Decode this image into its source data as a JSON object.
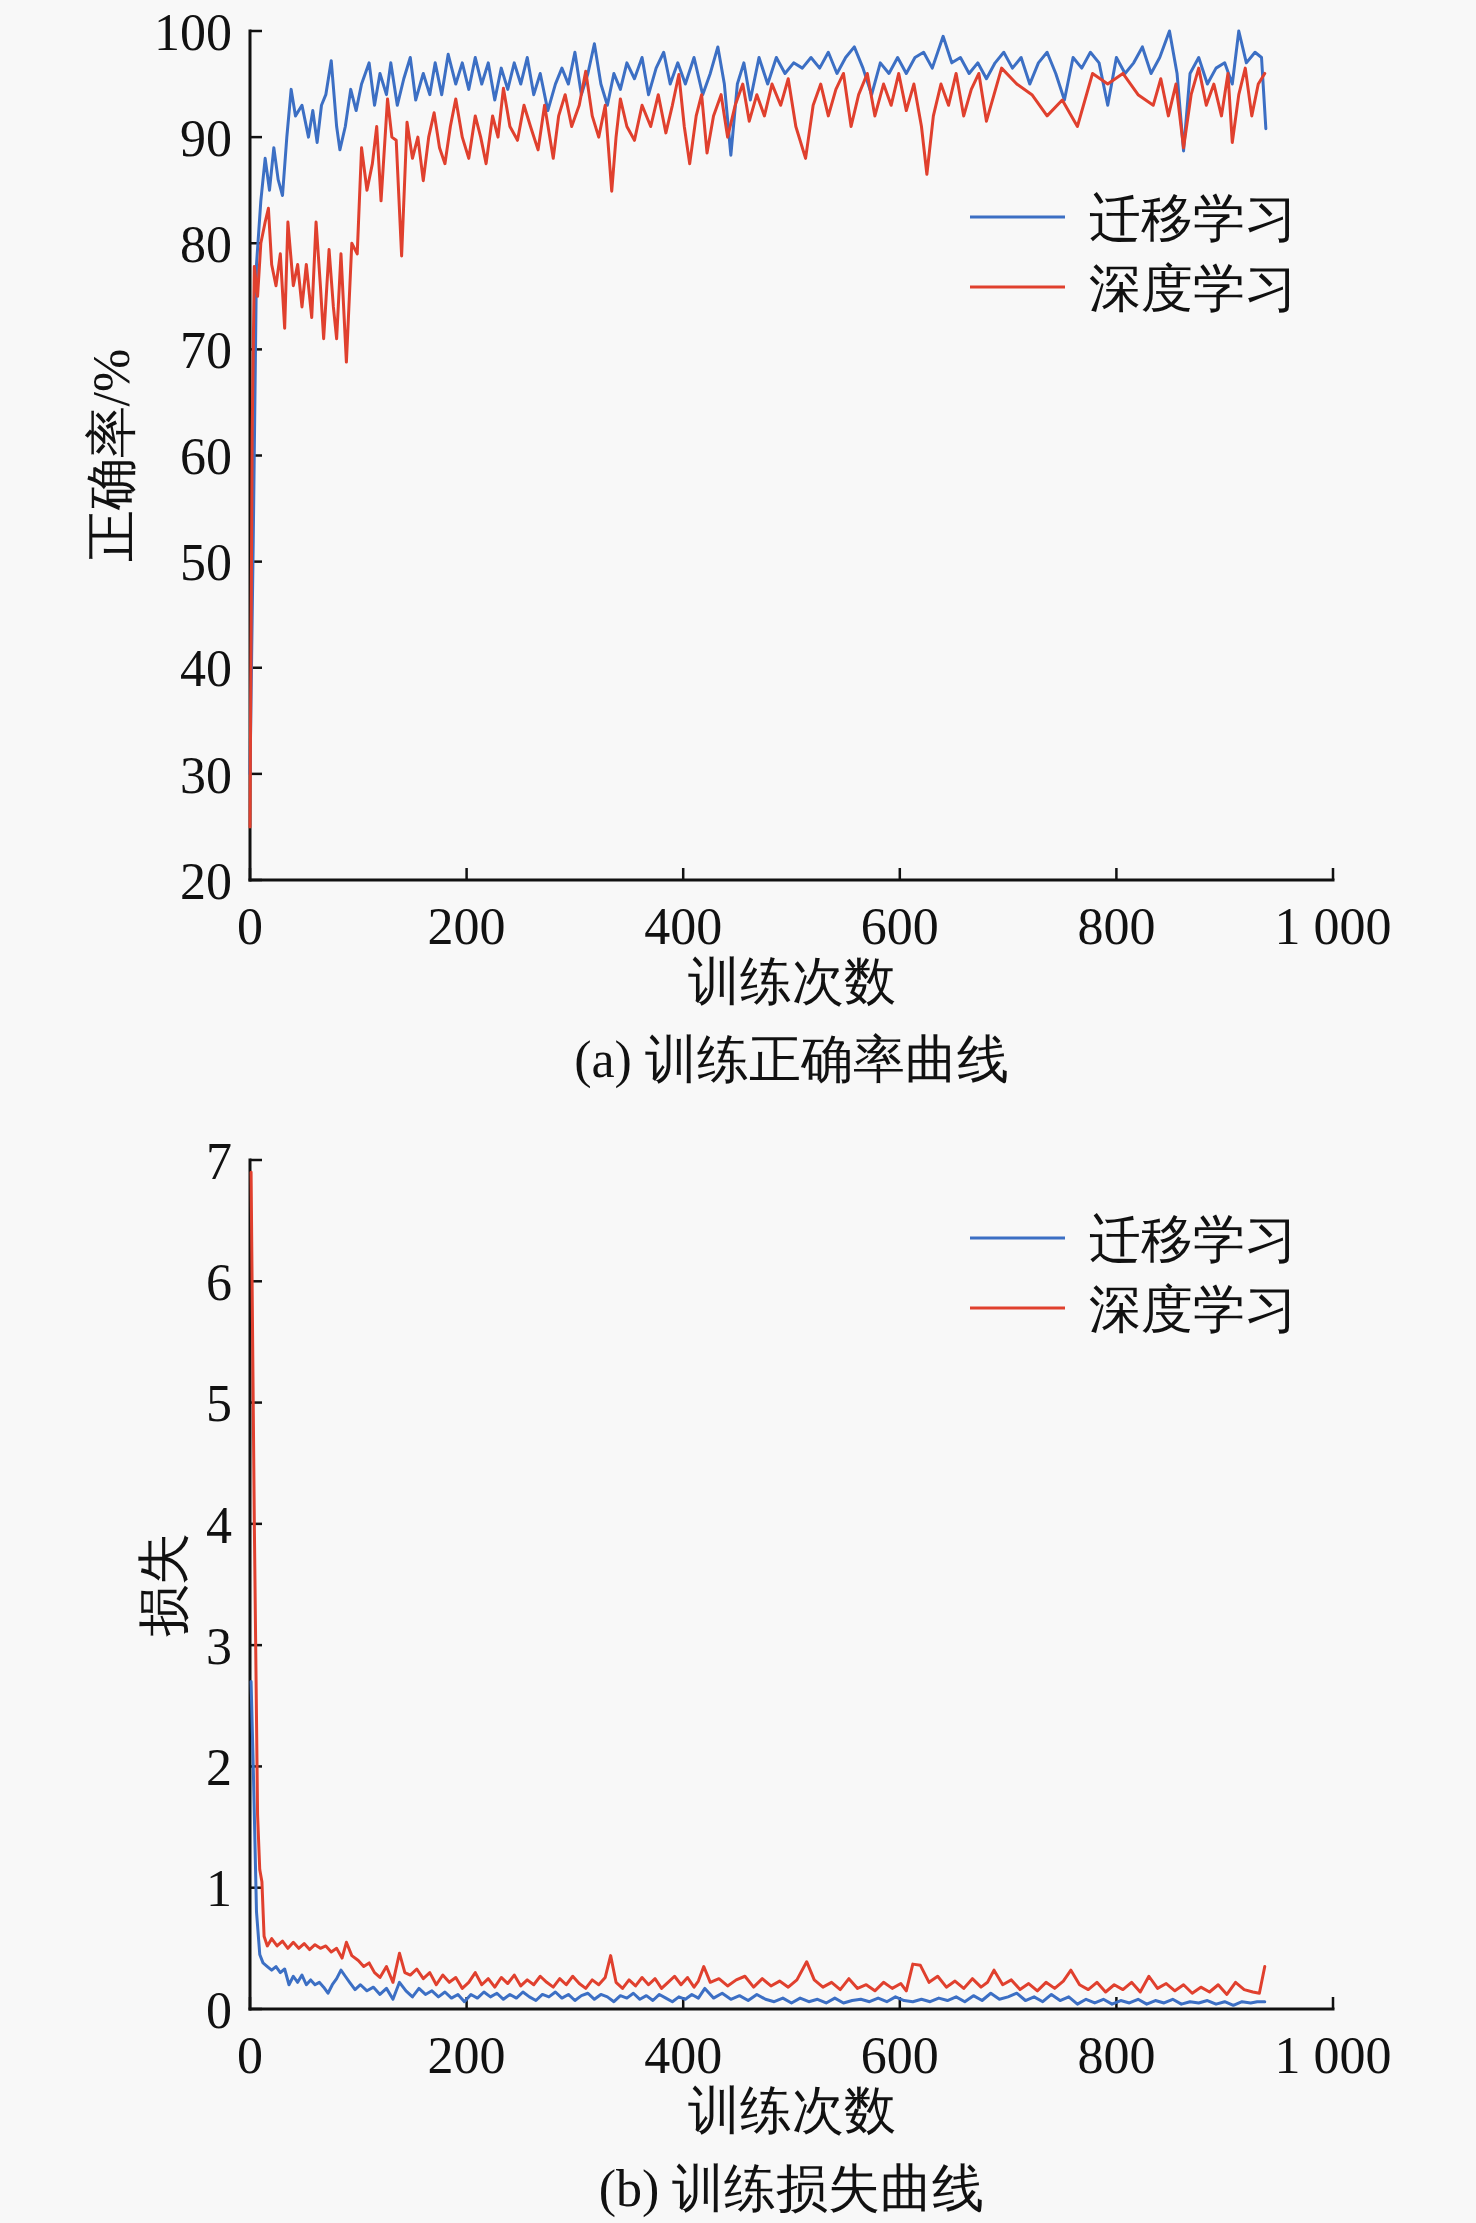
{
  "chart_data": [
    {
      "type": "line",
      "title": "(a) 训练正确率曲线",
      "xlabel": "训练次数",
      "ylabel": "正确率/%",
      "xlim": [
        0,
        1000
      ],
      "xticks": [
        0,
        200,
        400,
        600,
        800,
        {
          "value": 1000,
          "label": "1 000"
        }
      ],
      "ylim": [
        20,
        100
      ],
      "yticks": [
        20,
        30,
        40,
        50,
        60,
        70,
        80,
        90,
        100
      ],
      "legend": "top right",
      "line_style": "solid",
      "series": [
        {
          "name": "迁移学习",
          "color": "#3c6fc4",
          "x": [
            0,
            3,
            6,
            10,
            14,
            18,
            22,
            26,
            30,
            34,
            38,
            42,
            48,
            54,
            58,
            62,
            66,
            70,
            75,
            80,
            83,
            88,
            93,
            98,
            103,
            110,
            115,
            120,
            126,
            130,
            136,
            142,
            148,
            153,
            160,
            166,
            171,
            177,
            183,
            190,
            196,
            202,
            208,
            214,
            220,
            226,
            232,
            238,
            244,
            250,
            256,
            262,
            268,
            275,
            282,
            288,
            294,
            300,
            306,
            312,
            318,
            324,
            330,
            336,
            342,
            348,
            355,
            362,
            368,
            375,
            382,
            388,
            395,
            402,
            410,
            418,
            425,
            432,
            438,
            444,
            450,
            456,
            462,
            470,
            478,
            486,
            494,
            502,
            510,
            518,
            526,
            534,
            542,
            550,
            558,
            566,
            574,
            582,
            590,
            598,
            606,
            614,
            622,
            630,
            640,
            648,
            656,
            664,
            672,
            680,
            688,
            696,
            704,
            712,
            720,
            728,
            736,
            744,
            752,
            760,
            768,
            776,
            784,
            792,
            800,
            808,
            816,
            824,
            832,
            840,
            849,
            856,
            862,
            868,
            876,
            884,
            892,
            900,
            907,
            913,
            920,
            928,
            934,
            938
          ],
          "values": [
            30,
            52,
            78,
            84,
            88,
            85,
            89,
            86,
            84.5,
            90,
            94.5,
            92,
            93,
            90,
            92.5,
            89.5,
            93,
            94,
            97.2,
            91,
            88.8,
            91,
            94.5,
            92.5,
            95,
            97,
            93,
            96,
            94,
            97,
            93,
            95.5,
            97.5,
            93.5,
            96,
            94,
            97,
            94,
            97.8,
            95,
            97,
            94.5,
            97.5,
            95,
            97,
            93.5,
            96.5,
            94.5,
            97,
            95,
            97.5,
            94,
            96,
            92.5,
            95,
            96.5,
            95,
            98,
            94,
            96,
            98.8,
            95,
            93,
            96,
            94.5,
            97,
            95.5,
            97.5,
            94,
            96.5,
            98,
            95,
            97,
            95,
            97.5,
            94,
            96,
            98.5,
            95,
            88.3,
            95,
            97,
            93.5,
            97.5,
            95,
            97.5,
            96,
            97,
            96.5,
            97.5,
            96.5,
            98,
            96,
            97.5,
            98.5,
            96.5,
            94,
            97,
            96,
            97.5,
            96,
            97.5,
            98,
            96.5,
            99.5,
            97,
            97.5,
            96,
            97,
            95.5,
            97,
            98,
            96.5,
            97.5,
            95,
            97,
            98,
            96,
            93.5,
            97.5,
            96.5,
            98,
            97,
            93,
            97.5,
            96,
            97,
            98.5,
            96,
            97.5,
            100,
            96,
            88.7,
            96,
            97.5,
            95,
            96.5,
            97,
            95,
            100,
            97,
            98,
            97.5,
            90.8
          ]
        },
        {
          "name": "深度学习",
          "color": "#e0402e",
          "x": [
            0,
            2,
            4,
            7,
            10,
            14,
            17,
            20,
            24,
            28,
            32,
            35,
            40,
            44,
            48,
            52,
            57,
            61,
            65,
            68,
            73,
            77,
            80,
            84,
            89,
            94,
            99,
            103,
            108,
            113,
            117,
            121,
            127,
            131,
            135,
            140,
            145,
            150,
            155,
            160,
            165,
            170,
            175,
            180,
            185,
            190,
            196,
            202,
            208,
            213,
            218,
            224,
            229,
            234,
            240,
            247,
            253,
            259,
            266,
            272,
            280,
            285,
            291,
            297,
            304,
            310,
            316,
            322,
            328,
            334,
            338,
            342,
            348,
            355,
            362,
            370,
            377,
            384,
            390,
            396,
            401,
            406,
            412,
            417,
            422,
            428,
            435,
            441,
            448,
            455,
            461,
            468,
            475,
            482,
            490,
            497,
            504,
            513,
            520,
            527,
            534,
            541,
            548,
            555,
            562,
            570,
            577,
            585,
            592,
            599,
            606,
            613,
            620,
            625,
            631,
            638,
            645,
            652,
            659,
            666,
            673,
            680,
            687,
            694,
            708,
            722,
            736,
            750,
            764,
            778,
            792,
            806,
            820,
            834,
            841,
            848,
            855,
            862,
            869,
            876,
            883,
            890,
            897,
            903,
            907,
            913,
            919,
            925,
            931,
            937
          ],
          "values": [
            25,
            62,
            77.8,
            75,
            80,
            82,
            83.3,
            78,
            76,
            79,
            72,
            82,
            76,
            78,
            74,
            78,
            73,
            82,
            76,
            71,
            79.4,
            74,
            71,
            79,
            68.8,
            80,
            79,
            89,
            85,
            87.5,
            91,
            84,
            93.6,
            90,
            89.7,
            78.8,
            91.4,
            88,
            90,
            85.9,
            90,
            92.3,
            89,
            87.5,
            91,
            93.6,
            90,
            88,
            92,
            90,
            87.5,
            92,
            90,
            94.6,
            91,
            89.7,
            93,
            91,
            88.8,
            93,
            88,
            92,
            94,
            91,
            93,
            96.2,
            92,
            90,
            93,
            84.9,
            90,
            93.6,
            91,
            89.7,
            93,
            91,
            94,
            90.4,
            93,
            95.9,
            91,
            87.5,
            92,
            94,
            88.5,
            92,
            94,
            90,
            93,
            95,
            91.5,
            94,
            92,
            95,
            93,
            95.5,
            91,
            88,
            93,
            95,
            92,
            94.5,
            96,
            91,
            94,
            96,
            92,
            95,
            93,
            96,
            92.5,
            95,
            91,
            86.5,
            92,
            95,
            93,
            96,
            92,
            94.5,
            96,
            91.5,
            94,
            96.5,
            95,
            94,
            92,
            93.5,
            91,
            96,
            95,
            96,
            94,
            93,
            95.5,
            92,
            95,
            89,
            94,
            96.5,
            93,
            95,
            92,
            96,
            89.5,
            94,
            96.5,
            92,
            95,
            96
          ]
        }
      ]
    },
    {
      "type": "line",
      "title": "(b) 训练损失曲线",
      "xlabel": "训练次数",
      "ylabel": "损失",
      "xlim": [
        0,
        1000
      ],
      "xticks": [
        0,
        200,
        400,
        600,
        800,
        {
          "value": 1000,
          "label": "1 000"
        }
      ],
      "ylim": [
        0,
        7
      ],
      "yticks": [
        0,
        1,
        2,
        3,
        4,
        5,
        6,
        7
      ],
      "legend": "top right",
      "line_style": "solid",
      "series": [
        {
          "name": "迁移学习",
          "color": "#3c6fc4",
          "x": [
            1,
            3,
            6,
            9,
            12,
            16,
            20,
            24,
            28,
            32,
            36,
            40,
            44,
            48,
            52,
            56,
            60,
            64,
            68,
            72,
            76,
            80,
            84,
            88,
            92,
            97,
            102,
            108,
            114,
            120,
            126,
            132,
            138,
            144,
            150,
            156,
            162,
            168,
            174,
            180,
            186,
            192,
            198,
            204,
            210,
            216,
            222,
            228,
            234,
            240,
            246,
            252,
            258,
            264,
            270,
            276,
            282,
            288,
            294,
            300,
            306,
            312,
            318,
            324,
            330,
            336,
            342,
            348,
            354,
            360,
            366,
            372,
            378,
            384,
            390,
            396,
            402,
            408,
            414,
            420,
            428,
            436,
            444,
            452,
            460,
            468,
            476,
            484,
            492,
            500,
            508,
            516,
            524,
            532,
            540,
            548,
            556,
            564,
            572,
            580,
            588,
            596,
            604,
            612,
            620,
            628,
            636,
            644,
            652,
            660,
            668,
            676,
            684,
            692,
            700,
            708,
            716,
            724,
            732,
            740,
            748,
            756,
            764,
            772,
            780,
            788,
            796,
            804,
            812,
            820,
            828,
            836,
            844,
            852,
            860,
            868,
            876,
            884,
            892,
            900,
            908,
            916,
            924,
            930,
            937
          ],
          "values": [
            2.7,
            2.0,
            0.8,
            0.45,
            0.38,
            0.35,
            0.32,
            0.35,
            0.3,
            0.33,
            0.2,
            0.27,
            0.22,
            0.28,
            0.2,
            0.24,
            0.2,
            0.22,
            0.18,
            0.13,
            0.2,
            0.25,
            0.32,
            0.27,
            0.22,
            0.16,
            0.2,
            0.15,
            0.18,
            0.12,
            0.17,
            0.08,
            0.22,
            0.15,
            0.1,
            0.17,
            0.12,
            0.15,
            0.1,
            0.14,
            0.09,
            0.12,
            0.06,
            0.12,
            0.09,
            0.14,
            0.1,
            0.13,
            0.08,
            0.12,
            0.09,
            0.14,
            0.1,
            0.07,
            0.12,
            0.1,
            0.14,
            0.09,
            0.12,
            0.07,
            0.11,
            0.13,
            0.08,
            0.12,
            0.1,
            0.06,
            0.11,
            0.09,
            0.13,
            0.08,
            0.11,
            0.07,
            0.12,
            0.09,
            0.06,
            0.1,
            0.08,
            0.12,
            0.09,
            0.17,
            0.09,
            0.13,
            0.08,
            0.11,
            0.07,
            0.12,
            0.08,
            0.06,
            0.09,
            0.05,
            0.09,
            0.06,
            0.08,
            0.05,
            0.09,
            0.05,
            0.07,
            0.08,
            0.06,
            0.09,
            0.06,
            0.1,
            0.07,
            0.06,
            0.08,
            0.06,
            0.09,
            0.07,
            0.1,
            0.06,
            0.11,
            0.07,
            0.13,
            0.08,
            0.1,
            0.13,
            0.07,
            0.1,
            0.06,
            0.12,
            0.07,
            0.1,
            0.04,
            0.08,
            0.05,
            0.08,
            0.04,
            0.07,
            0.05,
            0.08,
            0.04,
            0.07,
            0.05,
            0.08,
            0.04,
            0.06,
            0.05,
            0.07,
            0.04,
            0.06,
            0.03,
            0.06,
            0.05,
            0.06,
            0.06
          ]
        },
        {
          "name": "深度学习",
          "color": "#e0402e",
          "x": [
            1,
            4,
            7,
            9,
            11,
            13,
            16,
            20,
            25,
            30,
            35,
            40,
            45,
            50,
            55,
            60,
            65,
            70,
            75,
            80,
            85,
            89,
            94,
            100,
            105,
            110,
            115,
            120,
            126,
            132,
            138,
            143,
            148,
            154,
            160,
            166,
            172,
            178,
            184,
            190,
            196,
            202,
            208,
            214,
            220,
            226,
            232,
            238,
            244,
            250,
            256,
            262,
            268,
            274,
            280,
            286,
            292,
            298,
            304,
            310,
            316,
            322,
            328,
            333,
            338,
            344,
            350,
            356,
            362,
            368,
            374,
            380,
            386,
            392,
            398,
            404,
            410,
            414,
            419,
            425,
            433,
            441,
            449,
            457,
            465,
            473,
            481,
            489,
            497,
            505,
            514,
            521,
            529,
            537,
            545,
            553,
            561,
            569,
            577,
            585,
            593,
            601,
            606,
            612,
            619,
            627,
            635,
            643,
            651,
            659,
            667,
            675,
            681,
            687,
            695,
            703,
            711,
            719,
            727,
            735,
            743,
            751,
            758,
            766,
            774,
            782,
            790,
            798,
            806,
            814,
            822,
            830,
            838,
            846,
            854,
            862,
            870,
            878,
            886,
            894,
            902,
            910,
            918,
            926,
            932,
            937
          ],
          "values": [
            6.9,
            4.0,
            1.6,
            1.15,
            1.05,
            0.6,
            0.52,
            0.58,
            0.52,
            0.56,
            0.5,
            0.55,
            0.5,
            0.54,
            0.49,
            0.53,
            0.5,
            0.52,
            0.47,
            0.5,
            0.42,
            0.55,
            0.44,
            0.4,
            0.35,
            0.38,
            0.3,
            0.26,
            0.35,
            0.22,
            0.46,
            0.3,
            0.28,
            0.33,
            0.25,
            0.3,
            0.2,
            0.28,
            0.22,
            0.26,
            0.17,
            0.22,
            0.3,
            0.2,
            0.25,
            0.18,
            0.26,
            0.21,
            0.28,
            0.19,
            0.24,
            0.2,
            0.27,
            0.22,
            0.18,
            0.25,
            0.2,
            0.27,
            0.21,
            0.17,
            0.24,
            0.2,
            0.26,
            0.44,
            0.22,
            0.17,
            0.24,
            0.19,
            0.26,
            0.2,
            0.25,
            0.17,
            0.22,
            0.27,
            0.2,
            0.26,
            0.18,
            0.23,
            0.35,
            0.22,
            0.25,
            0.19,
            0.24,
            0.27,
            0.18,
            0.25,
            0.19,
            0.23,
            0.18,
            0.24,
            0.39,
            0.24,
            0.18,
            0.22,
            0.16,
            0.25,
            0.17,
            0.2,
            0.15,
            0.22,
            0.17,
            0.21,
            0.15,
            0.37,
            0.36,
            0.22,
            0.27,
            0.18,
            0.23,
            0.17,
            0.25,
            0.18,
            0.22,
            0.32,
            0.2,
            0.24,
            0.16,
            0.21,
            0.15,
            0.22,
            0.17,
            0.23,
            0.32,
            0.2,
            0.16,
            0.22,
            0.14,
            0.2,
            0.16,
            0.22,
            0.14,
            0.27,
            0.17,
            0.21,
            0.15,
            0.2,
            0.13,
            0.18,
            0.14,
            0.2,
            0.12,
            0.22,
            0.16,
            0.14,
            0.13,
            0.35
          ]
        }
      ]
    }
  ]
}
